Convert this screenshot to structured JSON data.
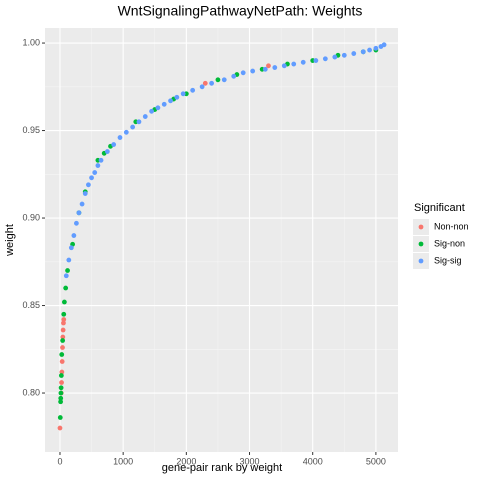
{
  "chart_data": {
    "type": "scatter",
    "title": "WntSignalingPathwayNetPath: Weights",
    "x_label": "gene-pair rank by weight",
    "y_label": "weight",
    "legend_title": "Significant",
    "legend_position": "right",
    "grid": true,
    "xlim": [
      -237,
      5350
    ],
    "ylim": [
      0.7663,
      1.0086
    ],
    "xticks": [
      0,
      1000,
      2000,
      3000,
      4000,
      5000
    ],
    "yticks": [
      {
        "value": 0.8,
        "label": "0.80"
      },
      {
        "value": 0.85,
        "label": "0.85"
      },
      {
        "value": 0.9,
        "label": "0.90"
      },
      {
        "value": 0.95,
        "label": "0.95"
      },
      {
        "value": 1.0,
        "label": "1.00"
      }
    ],
    "series": [
      {
        "name": "Non-non",
        "color": "#F8766D",
        "x": [
          0,
          20,
          25,
          30,
          35,
          40,
          45,
          50,
          55,
          60,
          2300,
          3300
        ],
        "values": [
          0.78,
          0.8,
          0.806,
          0.812,
          0.818,
          0.826,
          0.832,
          0.836,
          0.84,
          0.842,
          0.977,
          0.987
        ]
      },
      {
        "name": "Sig-non",
        "color": "#00BA38",
        "x": [
          5,
          10,
          12,
          15,
          18,
          22,
          28,
          42,
          60,
          70,
          90,
          120,
          200,
          300,
          400,
          600,
          700,
          800,
          1200,
          1500,
          1800,
          2000,
          2500,
          2800,
          3200,
          3600,
          4000,
          4400,
          4800,
          5000
        ],
        "values": [
          0.786,
          0.795,
          0.797,
          0.8,
          0.803,
          0.81,
          0.822,
          0.83,
          0.845,
          0.852,
          0.86,
          0.87,
          0.885,
          0.903,
          0.915,
          0.933,
          0.937,
          0.941,
          0.955,
          0.962,
          0.968,
          0.971,
          0.979,
          0.982,
          0.985,
          0.988,
          0.99,
          0.993,
          0.995,
          0.996
        ]
      },
      {
        "name": "Sig-sig",
        "color": "#619CFF",
        "x": [
          100,
          140,
          180,
          220,
          260,
          300,
          350,
          400,
          450,
          500,
          550,
          600,
          650,
          750,
          850,
          950,
          1050,
          1150,
          1250,
          1350,
          1450,
          1550,
          1650,
          1750,
          1850,
          1950,
          2100,
          2250,
          2400,
          2600,
          2750,
          2900,
          3050,
          3250,
          3400,
          3550,
          3700,
          3850,
          4050,
          4200,
          4350,
          4500,
          4650,
          4800,
          4900,
          5000,
          5080,
          5130
        ],
        "values": [
          0.867,
          0.876,
          0.883,
          0.89,
          0.897,
          0.903,
          0.908,
          0.914,
          0.919,
          0.923,
          0.926,
          0.93,
          0.933,
          0.938,
          0.942,
          0.946,
          0.949,
          0.952,
          0.955,
          0.958,
          0.961,
          0.963,
          0.965,
          0.967,
          0.969,
          0.971,
          0.973,
          0.975,
          0.977,
          0.979,
          0.981,
          0.983,
          0.984,
          0.985,
          0.986,
          0.987,
          0.988,
          0.989,
          0.99,
          0.991,
          0.992,
          0.993,
          0.994,
          0.995,
          0.996,
          0.997,
          0.998,
          0.999
        ]
      }
    ]
  }
}
